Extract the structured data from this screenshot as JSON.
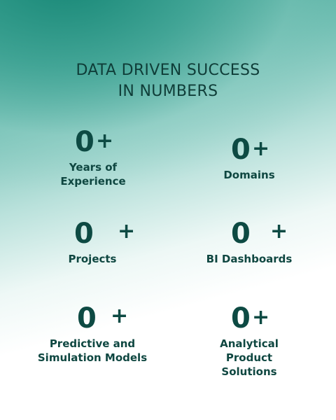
{
  "headline": {
    "line1": "DATA DRIVEN SUCCESS",
    "line2": "IN NUMBERS"
  },
  "stats": [
    {
      "value": "0",
      "suffix": "+",
      "label_lines": [
        "Years of",
        "Experience"
      ]
    },
    {
      "value": "0",
      "suffix": "+",
      "label_lines": [
        "Domains"
      ]
    },
    {
      "value": "0",
      "suffix": "+",
      "label_lines": [
        "Projects"
      ]
    },
    {
      "value": "0",
      "suffix": "+",
      "label_lines": [
        "BI Dashboards"
      ]
    },
    {
      "value": "0",
      "suffix": "+",
      "label_lines": [
        "Predictive and",
        "Simulation Models"
      ]
    },
    {
      "value": "0",
      "suffix": "+",
      "label_lines": [
        "Analytical",
        "Product",
        "Solutions"
      ]
    }
  ]
}
